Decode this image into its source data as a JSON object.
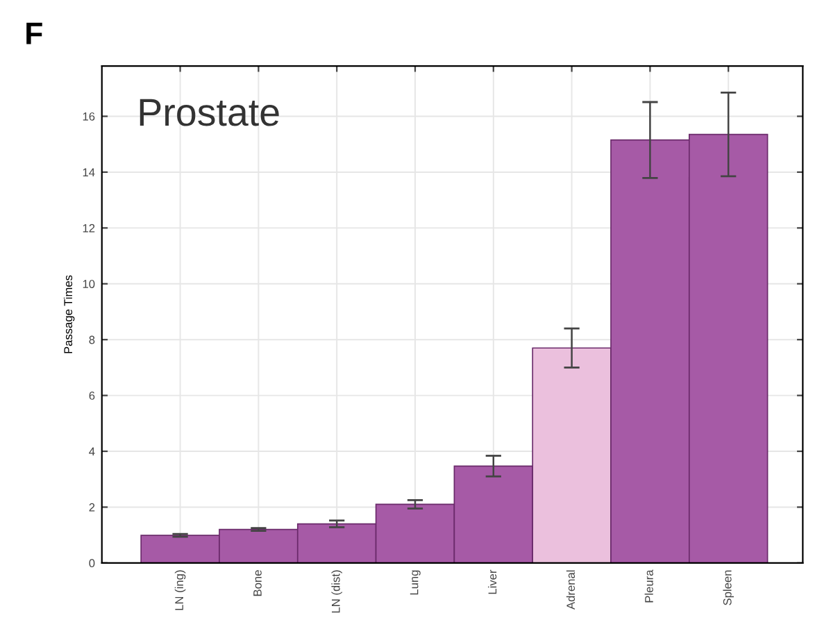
{
  "chart_data": {
    "type": "bar",
    "ylabel": "Passage Times",
    "annotations": [
      "F",
      "Prostate"
    ],
    "categories": [
      "LN (ing)",
      "Bone",
      "LN (dist)",
      "Lung",
      "Liver",
      "Adrenal",
      "Pleura",
      "Spleen"
    ],
    "values": [
      0.99,
      1.2,
      1.4,
      2.1,
      3.47,
      7.7,
      15.15,
      15.35
    ],
    "errors": [
      0.05,
      0.05,
      0.12,
      0.15,
      0.37,
      0.7,
      1.36,
      1.5
    ],
    "colors": [
      "#a65aa6",
      "#a65aa6",
      "#a65aa6",
      "#a65aa6",
      "#a65aa6",
      "#ebc0dd",
      "#a65aa6",
      "#a65aa6"
    ],
    "ylim": [
      0,
      17.8
    ],
    "yticks": [
      0,
      2,
      4,
      6,
      8,
      10,
      12,
      14,
      16
    ],
    "grid": true
  }
}
